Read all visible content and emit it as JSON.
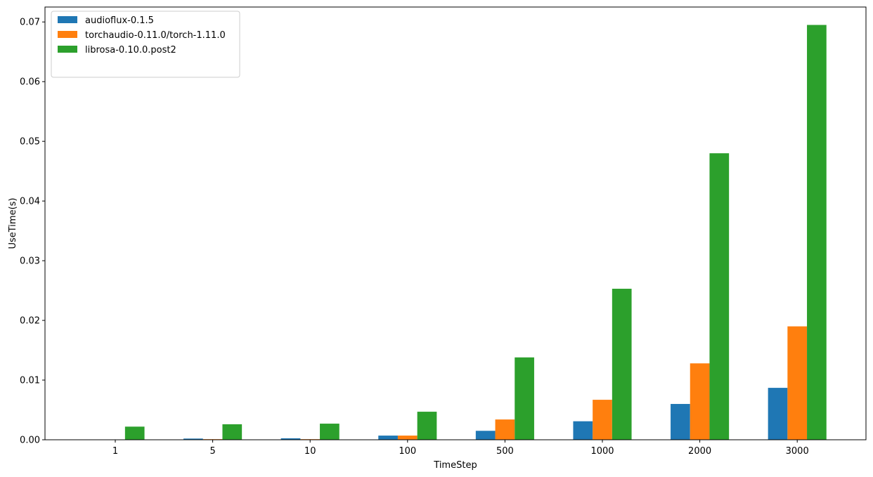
{
  "chart_data": {
    "type": "bar",
    "title": "",
    "xlabel": "TimeStep",
    "ylabel": "UseTime(s)",
    "categories": [
      "1",
      "5",
      "10",
      "100",
      "500",
      "1000",
      "2000",
      "3000"
    ],
    "ylim": [
      0,
      0.0725
    ],
    "yticks": [
      0.0,
      0.01,
      0.02,
      0.03,
      0.04,
      0.05,
      0.06,
      0.07
    ],
    "ytick_labels": [
      "0.00",
      "0.01",
      "0.02",
      "0.03",
      "0.04",
      "0.05",
      "0.06",
      "0.07"
    ],
    "grid": false,
    "legend_position": "top-left",
    "series": [
      {
        "name": "audioflux-0.1.5",
        "color": "#1f77b4",
        "values": [
          5e-05,
          0.0002,
          0.00025,
          0.0007,
          0.0015,
          0.0031,
          0.006,
          0.0087
        ]
      },
      {
        "name": "torchaudio-0.11.0/torch-1.11.0",
        "color": "#ff7f0e",
        "values": [
          5e-05,
          0.0001,
          0.0001,
          0.0007,
          0.0034,
          0.0067,
          0.0128,
          0.019
        ]
      },
      {
        "name": "librosa-0.10.0.post2",
        "color": "#2ca02c",
        "values": [
          0.0022,
          0.0026,
          0.0027,
          0.0047,
          0.0138,
          0.0253,
          0.048,
          0.0695
        ]
      }
    ]
  }
}
